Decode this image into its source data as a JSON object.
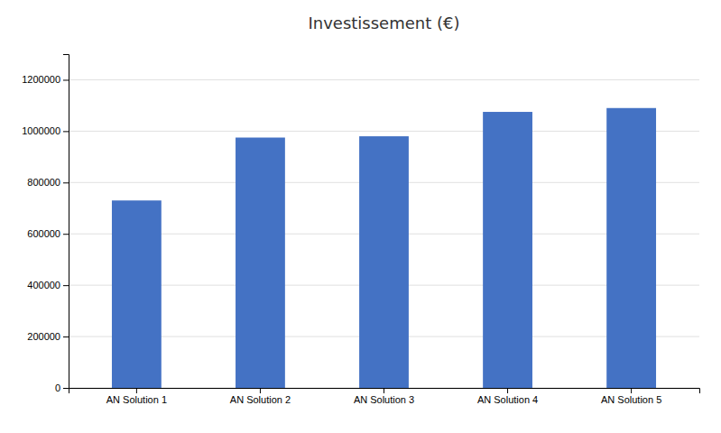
{
  "chart_data": {
    "type": "bar",
    "title": "Investissement (€)",
    "categories": [
      "AN Solution 1",
      "AN Solution 2",
      "AN Solution 3",
      "AN Solution 4",
      "AN Solution 5"
    ],
    "values": [
      730000,
      975000,
      980000,
      1075000,
      1090000
    ],
    "color": "#4472C4",
    "ylim": [
      0,
      1300000
    ],
    "yticks": [
      0,
      200000,
      400000,
      600000,
      800000,
      1000000,
      1200000
    ],
    "grid": true
  }
}
